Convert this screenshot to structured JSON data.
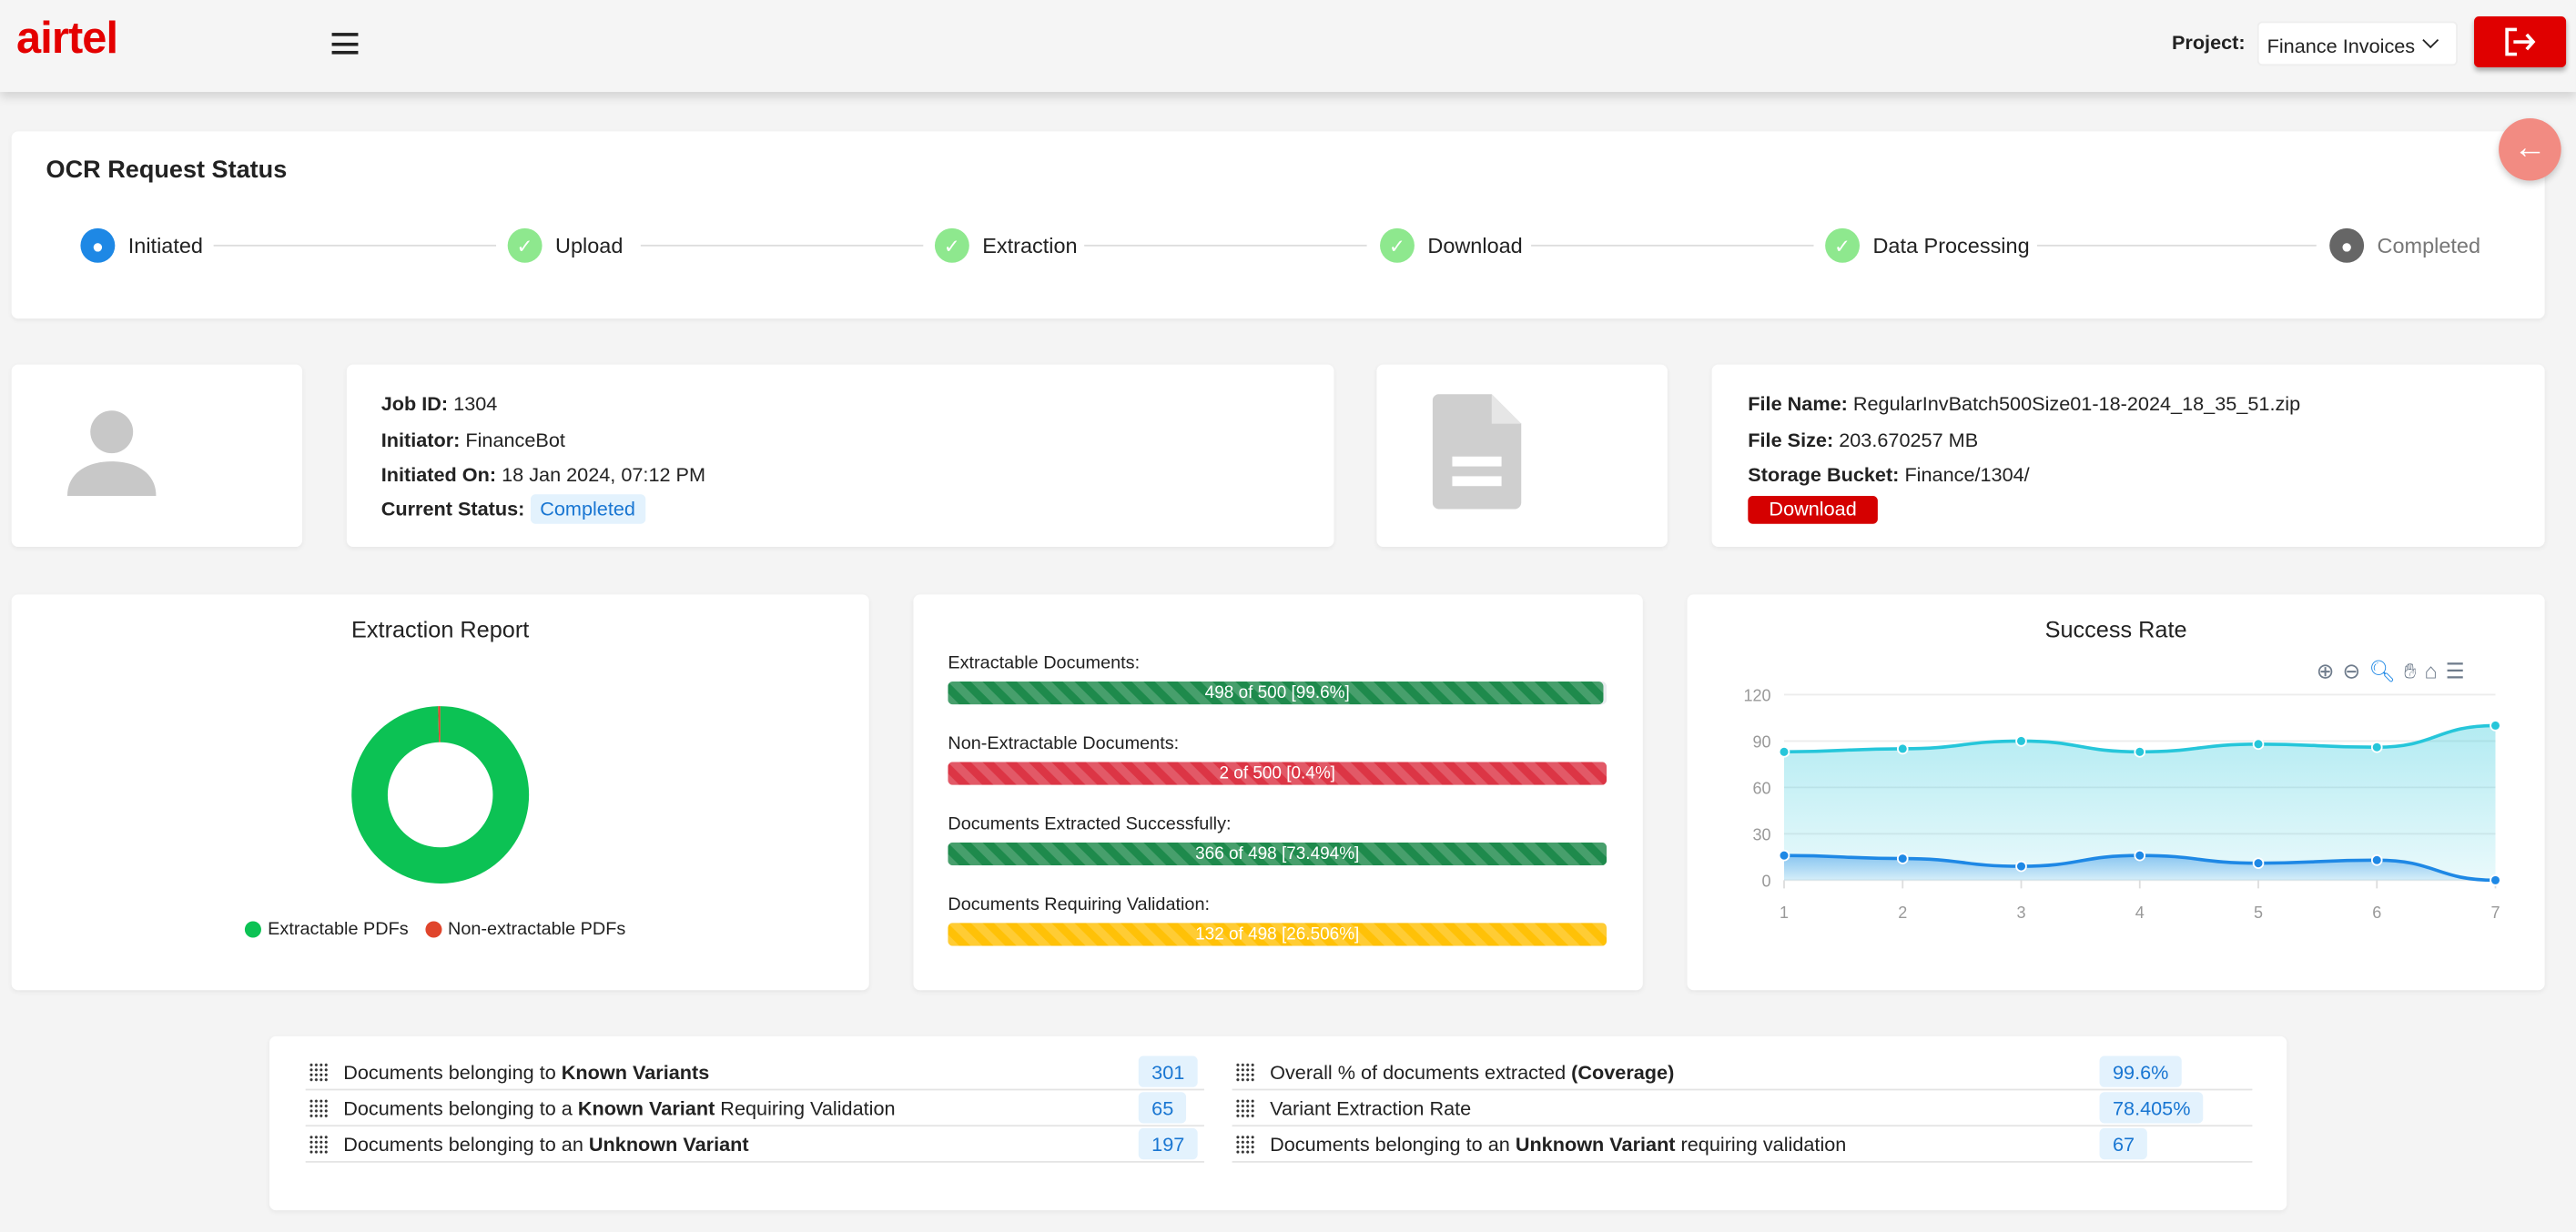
{
  "header": {
    "brand": "airtel",
    "project_label": "Project:",
    "project_value": "Finance Invoices",
    "colors": {
      "brand": "#e40000"
    }
  },
  "ocr": {
    "title": "OCR Request Status",
    "steps": [
      {
        "label": "Initiated",
        "state": "active",
        "icon": "person-icon"
      },
      {
        "label": "Upload",
        "state": "done",
        "icon": "check-icon"
      },
      {
        "label": "Extraction",
        "state": "done",
        "icon": "check-icon"
      },
      {
        "label": "Download",
        "state": "done",
        "icon": "check-icon"
      },
      {
        "label": "Data Processing",
        "state": "done",
        "icon": "check-icon"
      },
      {
        "label": "Completed",
        "state": "pending",
        "icon": "person-gear-icon"
      }
    ]
  },
  "job": {
    "job_id_label": "Job ID:",
    "job_id": "1304",
    "initiator_label": "Initiator:",
    "initiator": "FinanceBot",
    "initiated_label": "Initiated On:",
    "initiated": "18 Jan 2024, 07:12 PM",
    "status_label": "Current Status:",
    "status": "Completed"
  },
  "file": {
    "name_label": "File Name:",
    "name": "RegularInvBatch500Size01-18-2024_18_35_51.zip",
    "size_label": "File Size:",
    "size": "203.670257 MB",
    "bucket_label": "Storage Bucket:",
    "bucket": "Finance/1304/",
    "download": "Download"
  },
  "progress": [
    {
      "label": "Extractable Documents:",
      "text": "498 of 500 [99.6%]",
      "percent": 99.6,
      "color": "#1e8a4c"
    },
    {
      "label": "Non-Extractable Documents:",
      "text": "2 of 500 [0.4%]",
      "percent": 100,
      "color": "#dc3545"
    },
    {
      "label": "Documents Extracted Successfully:",
      "text": "366 of 498 [73.494%]",
      "percent": 100,
      "color": "#1e8a4c"
    },
    {
      "label": "Documents Requiring Validation:",
      "text": "132 of 498 [26.506%]",
      "percent": 100,
      "color": "#ffc107"
    }
  ],
  "stats": {
    "left": [
      {
        "pre": "Documents belonging to ",
        "bold": "Known Variants",
        "post": "",
        "value": "301"
      },
      {
        "pre": "Documents belonging to a ",
        "bold": "Known Variant",
        "post": " Requiring Validation",
        "value": "65"
      },
      {
        "pre": "Documents belonging to an ",
        "bold": "Unknown Variant",
        "post": "",
        "value": "197"
      }
    ],
    "right": [
      {
        "pre": "Overall % of documents extracted ",
        "bold": "(Coverage)",
        "post": "",
        "value": "99.6%"
      },
      {
        "pre": "Variant Extraction Rate",
        "bold": "",
        "post": "",
        "value": "78.405%"
      },
      {
        "pre": "Documents belonging to an ",
        "bold": "Unknown Variant",
        "post": " requiring validation",
        "value": "67"
      }
    ]
  },
  "chart_data": [
    {
      "type": "pie",
      "title": "Extraction Report",
      "donut": true,
      "labels": [
        "Extractable PDFs",
        "Non-extractable PDFs"
      ],
      "values": [
        498,
        2
      ],
      "colors": [
        "#0cc254",
        "#e0452c"
      ],
      "legend": "bottom"
    },
    {
      "type": "area",
      "title": "Success Rate",
      "x": [
        1,
        2,
        3,
        4,
        5,
        6,
        7
      ],
      "ylim": [
        0,
        120
      ],
      "yticks": [
        0,
        30,
        60,
        90,
        120
      ],
      "grid": true,
      "series": [
        {
          "values": [
            83,
            85,
            90,
            83,
            88,
            86,
            100
          ],
          "color": "#26c6da"
        },
        {
          "values": [
            16,
            14,
            9,
            16,
            11,
            13,
            0
          ],
          "color": "#1e88e5"
        }
      ]
    }
  ]
}
